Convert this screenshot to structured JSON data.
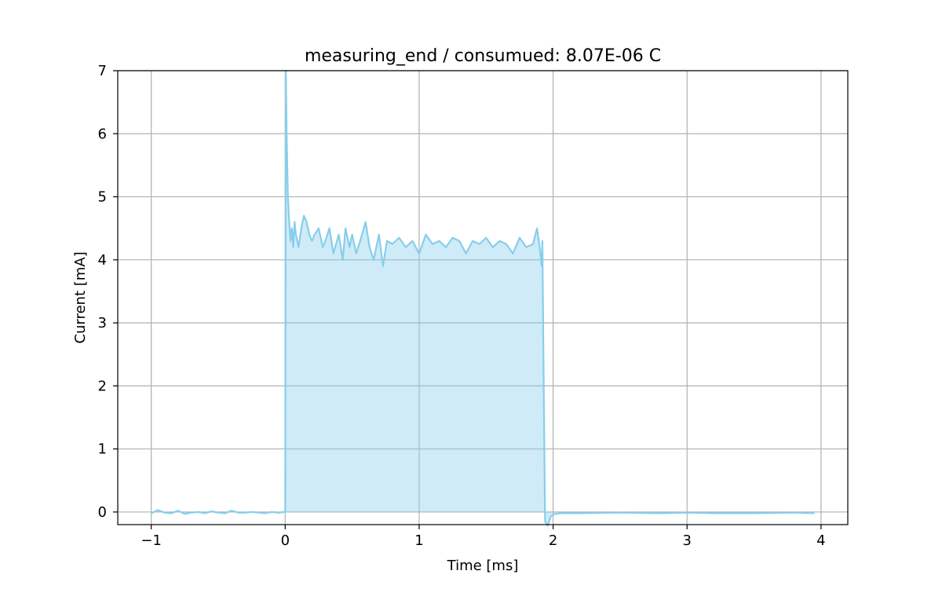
{
  "chart_data": {
    "type": "area",
    "title": "measuring_end / consumued: 8.07E-06 C",
    "xlabel": "Time [ms]",
    "ylabel": "Current [mA]",
    "xlim": [
      -1.25,
      4.2
    ],
    "ylim": [
      -0.2,
      7
    ],
    "xticks": [
      -1,
      0,
      1,
      2,
      3,
      4
    ],
    "yticks": [
      0,
      1,
      2,
      3,
      4,
      5,
      6,
      7
    ],
    "xtick_labels": [
      "−1",
      "0",
      "1",
      "2",
      "3",
      "4"
    ],
    "ytick_labels": [
      "0",
      "1",
      "2",
      "3",
      "4",
      "5",
      "6",
      "7"
    ],
    "grid": true,
    "colors": {
      "line": "#87ceeb",
      "fill": "#87ceeb",
      "grid": "#b0b0b0",
      "axes": "#000000"
    },
    "series": [
      {
        "name": "current",
        "x": [
          -1.0,
          -0.95,
          -0.9,
          -0.85,
          -0.8,
          -0.75,
          -0.7,
          -0.65,
          -0.6,
          -0.55,
          -0.5,
          -0.45,
          -0.4,
          -0.35,
          -0.3,
          -0.25,
          -0.2,
          -0.15,
          -0.1,
          -0.05,
          0.0,
          0.005,
          0.01,
          0.02,
          0.03,
          0.04,
          0.05,
          0.06,
          0.07,
          0.08,
          0.1,
          0.12,
          0.14,
          0.16,
          0.18,
          0.2,
          0.22,
          0.25,
          0.28,
          0.3,
          0.33,
          0.36,
          0.4,
          0.43,
          0.45,
          0.48,
          0.5,
          0.53,
          0.56,
          0.6,
          0.63,
          0.66,
          0.7,
          0.73,
          0.76,
          0.8,
          0.85,
          0.9,
          0.95,
          1.0,
          1.05,
          1.1,
          1.15,
          1.2,
          1.25,
          1.3,
          1.35,
          1.4,
          1.45,
          1.5,
          1.55,
          1.6,
          1.65,
          1.7,
          1.75,
          1.8,
          1.85,
          1.88,
          1.9,
          1.915,
          1.92,
          1.93,
          1.94,
          1.96,
          1.98,
          2.0,
          2.05,
          2.2,
          2.5,
          2.8,
          3.0,
          3.2,
          3.5,
          3.8,
          3.95
        ],
        "y": [
          -0.02,
          0.03,
          -0.01,
          -0.02,
          0.02,
          -0.03,
          -0.01,
          0.0,
          -0.02,
          0.01,
          -0.01,
          -0.02,
          0.02,
          -0.01,
          -0.01,
          0.0,
          -0.01,
          -0.02,
          0.0,
          -0.01,
          0.0,
          7.0,
          6.1,
          5.0,
          4.6,
          4.3,
          4.5,
          4.2,
          4.6,
          4.4,
          4.2,
          4.5,
          4.7,
          4.6,
          4.4,
          4.3,
          4.4,
          4.5,
          4.2,
          4.3,
          4.5,
          4.1,
          4.4,
          4.0,
          4.5,
          4.2,
          4.4,
          4.1,
          4.3,
          4.6,
          4.2,
          4.0,
          4.4,
          3.9,
          4.3,
          4.25,
          4.35,
          4.2,
          4.3,
          4.1,
          4.4,
          4.25,
          4.3,
          4.2,
          4.35,
          4.3,
          4.1,
          4.3,
          4.25,
          4.35,
          4.2,
          4.3,
          4.25,
          4.1,
          4.35,
          4.2,
          4.25,
          4.5,
          4.2,
          3.9,
          4.3,
          2.0,
          -0.15,
          -0.22,
          -0.08,
          -0.04,
          -0.02,
          -0.02,
          -0.01,
          -0.02,
          -0.01,
          -0.02,
          -0.02,
          -0.01,
          -0.02
        ]
      }
    ]
  }
}
